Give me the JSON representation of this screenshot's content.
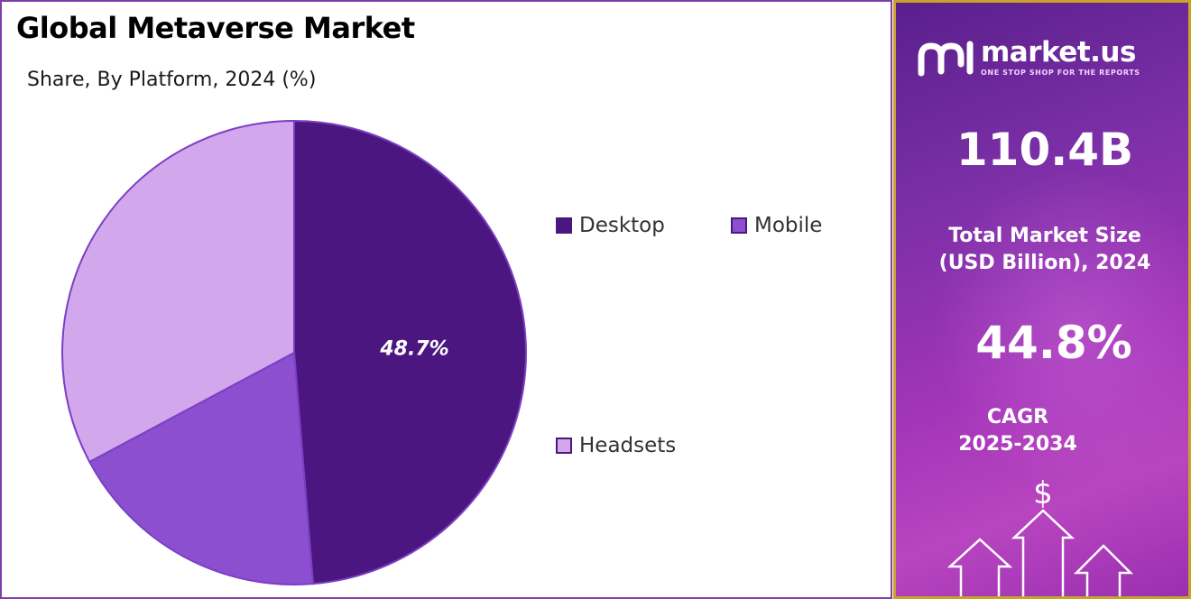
{
  "title": "Global Metaverse Market",
  "subtitle": "Share, By Platform, 2024 (%)",
  "chart_data": {
    "type": "pie",
    "title": "Global Metaverse Market",
    "subtitle": "Share, By Platform, 2024 (%)",
    "categories": [
      "Desktop",
      "Mobile",
      "Headsets"
    ],
    "values": [
      48.7,
      18.5,
      32.8
    ],
    "colors": [
      "#4c1680",
      "#8b4fcf",
      "#d2a7ec"
    ],
    "data_labels": [
      "48.7%",
      "",
      ""
    ],
    "legend_position": "right"
  },
  "sidebar": {
    "brand_name": "market.us",
    "brand_tagline": "ONE STOP SHOP FOR THE REPORTS",
    "market_size_value": "110.4B",
    "market_size_label_line1": "Total Market Size",
    "market_size_label_line2": "(USD Billion), 2024",
    "cagr_value": "44.8%",
    "cagr_label_line1": "CAGR",
    "cagr_label_line2": "2025-2034",
    "dollar_symbol": "$",
    "accent_color": "#c9a227"
  }
}
